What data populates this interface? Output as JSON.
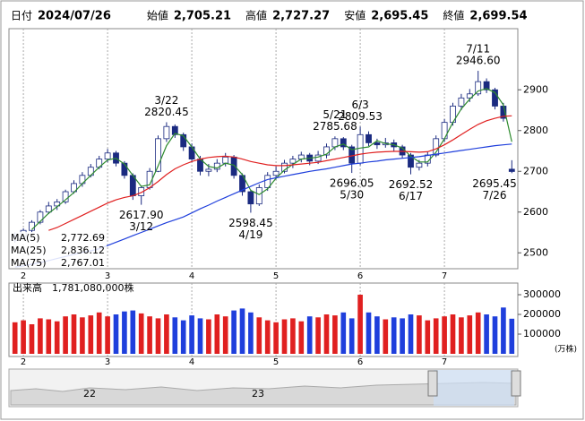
{
  "header": [
    {
      "label": "日付",
      "value": "2024/07/26"
    },
    {
      "label": "始値",
      "value": "2,705.21"
    },
    {
      "label": "高値",
      "value": "2,727.27",
      "color": "#e00000"
    },
    {
      "label": "安値",
      "value": "2,695.45",
      "color": "#008000"
    },
    {
      "label": "終値",
      "value": "2,699.54"
    }
  ],
  "chart_data": [
    {
      "type": "candlestick",
      "categories": [
        null,
        "2",
        null,
        null,
        null,
        null,
        null,
        null,
        null,
        null,
        null,
        "3",
        null,
        null,
        null,
        null,
        null,
        null,
        null,
        null,
        null,
        "4",
        null,
        null,
        null,
        null,
        null,
        null,
        null,
        null,
        null,
        "5",
        null,
        null,
        null,
        null,
        null,
        null,
        null,
        null,
        null,
        "6",
        null,
        null,
        null,
        null,
        null,
        null,
        null,
        null,
        null,
        "7",
        null,
        null,
        null,
        null,
        null,
        null,
        null,
        null
      ],
      "open": [
        2530,
        2540,
        2555,
        2575,
        2600,
        2615,
        2625,
        2650,
        2670,
        2690,
        2710,
        2730,
        2745,
        2720,
        2690,
        2640,
        2660,
        2700,
        2780,
        2810,
        2790,
        2760,
        2730,
        2700,
        2705,
        2720,
        2735,
        2690,
        2650,
        2620,
        2660,
        2690,
        2700,
        2720,
        2730,
        2740,
        2725,
        2740,
        2760,
        2780,
        2760,
        2720,
        2790,
        2770,
        2765,
        2770,
        2760,
        2740,
        2710,
        2720,
        2740,
        2780,
        2820,
        2860,
        2880,
        2890,
        2920,
        2900,
        2860,
        2705.21
      ],
      "high": [
        2550,
        2560,
        2580,
        2605,
        2625,
        2632,
        2655,
        2678,
        2698,
        2718,
        2738,
        2755,
        2750,
        2725,
        2695,
        2665,
        2708,
        2788,
        2820.45,
        2815,
        2795,
        2768,
        2738,
        2718,
        2730,
        2745,
        2740,
        2695,
        2655,
        2668,
        2698,
        2712,
        2728,
        2738,
        2748,
        2745,
        2750,
        2768,
        2785.68,
        2784,
        2765,
        2809.53,
        2798,
        2780,
        2782,
        2778,
        2765,
        2745,
        2728,
        2748,
        2788,
        2828,
        2868,
        2890,
        2902,
        2946.6,
        2928,
        2905,
        2868,
        2727.27
      ],
      "low": [
        2525,
        2535,
        2550,
        2570,
        2595,
        2605,
        2620,
        2645,
        2662,
        2685,
        2705,
        2722,
        2712,
        2682,
        2630,
        2617.9,
        2655,
        2698,
        2772,
        2782,
        2750,
        2722,
        2690,
        2688,
        2698,
        2712,
        2682,
        2640,
        2598.45,
        2615,
        2652,
        2680,
        2695,
        2708,
        2722,
        2715,
        2718,
        2732,
        2752,
        2752,
        2696.05,
        2715,
        2762,
        2755,
        2758,
        2750,
        2732,
        2692.52,
        2702,
        2712,
        2735,
        2772,
        2812,
        2850,
        2870,
        2885,
        2892,
        2852,
        2822,
        2695.45
      ],
      "close": [
        2540,
        2555,
        2575,
        2600,
        2615,
        2625,
        2650,
        2670,
        2690,
        2710,
        2730,
        2745,
        2720,
        2690,
        2640,
        2660,
        2700,
        2780,
        2810,
        2790,
        2760,
        2730,
        2700,
        2705,
        2720,
        2735,
        2690,
        2650,
        2620,
        2660,
        2690,
        2700,
        2720,
        2730,
        2740,
        2725,
        2740,
        2760,
        2780,
        2760,
        2720,
        2790,
        2770,
        2765,
        2770,
        2760,
        2740,
        2710,
        2720,
        2740,
        2780,
        2820,
        2860,
        2880,
        2890,
        2920,
        2900,
        2860,
        2830,
        2699.54
      ],
      "up_color": "#ffffff",
      "down_color": "#1a2a80",
      "series": [
        {
          "name": "MA(5)",
          "legend_value": "2,772.69",
          "color": "#2e8b2e",
          "values": [
            null,
            null,
            2557,
            2577,
            2597,
            2613,
            2630,
            2648,
            2670,
            2690,
            2710,
            2728,
            2732,
            2718,
            2690,
            2663,
            2667,
            2713,
            2763,
            2793,
            2787,
            2760,
            2730,
            2712,
            2708,
            2720,
            2715,
            2692,
            2653,
            2643,
            2657,
            2683,
            2703,
            2717,
            2730,
            2732,
            2735,
            2742,
            2760,
            2767,
            2753,
            2757,
            2760,
            2775,
            2768,
            2765,
            2757,
            2737,
            2723,
            2723,
            2747,
            2780,
            2820,
            2853,
            2877,
            2897,
            2903,
            2893,
            2863,
            2772.69
          ]
        },
        {
          "name": "MA(25)",
          "legend_value": "2,836.12",
          "color": "#e02020",
          "values": [
            null,
            null,
            null,
            null,
            2555,
            2562,
            2572,
            2582,
            2592,
            2602,
            2612,
            2622,
            2630,
            2636,
            2640,
            2648,
            2660,
            2675,
            2692,
            2706,
            2716,
            2724,
            2730,
            2734,
            2736,
            2737,
            2735,
            2730,
            2724,
            2720,
            2716,
            2714,
            2714,
            2716,
            2718,
            2720,
            2722,
            2726,
            2730,
            2734,
            2738,
            2742,
            2745,
            2747,
            2748,
            2749,
            2749,
            2748,
            2747,
            2748,
            2755,
            2765,
            2777,
            2790,
            2803,
            2815,
            2824,
            2830,
            2835,
            2836.12
          ]
        },
        {
          "name": "MA(75)",
          "legend_value": "2,767.01",
          "color": "#1f3fdc",
          "values": [
            2465,
            2468,
            2472,
            2476,
            2481,
            2486,
            2491,
            2496,
            2501,
            2505,
            2510,
            2518,
            2526,
            2534,
            2542,
            2550,
            2558,
            2566,
            2574,
            2581,
            2588,
            2598,
            2608,
            2617,
            2627,
            2636,
            2645,
            2654,
            2663,
            2672,
            2680,
            2684,
            2688,
            2692,
            2696,
            2700,
            2703,
            2706,
            2710,
            2714,
            2718,
            2720,
            2723,
            2725,
            2728,
            2730,
            2732,
            2734,
            2736,
            2739,
            2742,
            2745,
            2748,
            2751,
            2754,
            2757,
            2760,
            2763,
            2765,
            2767
          ]
        }
      ],
      "annotations": [
        {
          "date": "3/22",
          "value": 2820.45
        },
        {
          "date": "3/12",
          "value": 2617.9,
          "value_label": "2617.90"
        },
        {
          "date": "4/19",
          "value": 2598.45
        },
        {
          "date": "5/21",
          "value": 2785.68
        },
        {
          "date": "5/30",
          "value": 2696.05
        },
        {
          "date": "6/3",
          "value": 2809.53
        },
        {
          "date": "6/17",
          "value": 2692.52
        },
        {
          "date": "7/11",
          "value": 2946.6,
          "value_label": "2946.60"
        },
        {
          "date": "7/26",
          "value": 2695.45
        }
      ],
      "ylim": [
        2461,
        3050
      ],
      "yticks": [
        2500,
        2600,
        2700,
        2800,
        2900
      ]
    },
    {
      "type": "bar",
      "title": "出来高",
      "total_label": "1,781,080,000株",
      "unit_label": "(万株)",
      "up_color": "#e02020",
      "down_color": "#1f3fdc",
      "values": [
        160000,
        170000,
        150000,
        180000,
        175000,
        165000,
        190000,
        200000,
        185000,
        195000,
        210000,
        190000,
        200000,
        215000,
        220000,
        205000,
        190000,
        180000,
        200000,
        185000,
        170000,
        195000,
        180000,
        175000,
        200000,
        190000,
        220000,
        230000,
        210000,
        185000,
        170000,
        160000,
        175000,
        180000,
        165000,
        190000,
        185000,
        200000,
        195000,
        210000,
        180000,
        300000,
        210000,
        190000,
        175000,
        185000,
        180000,
        200000,
        195000,
        170000,
        180000,
        190000,
        200000,
        185000,
        195000,
        210000,
        200000,
        190000,
        235000,
        178108
      ],
      "ylim": [
        0,
        350000
      ],
      "yticks": [
        100000,
        200000,
        300000
      ]
    }
  ],
  "navigator": {
    "labels": [
      "22",
      "23"
    ]
  }
}
